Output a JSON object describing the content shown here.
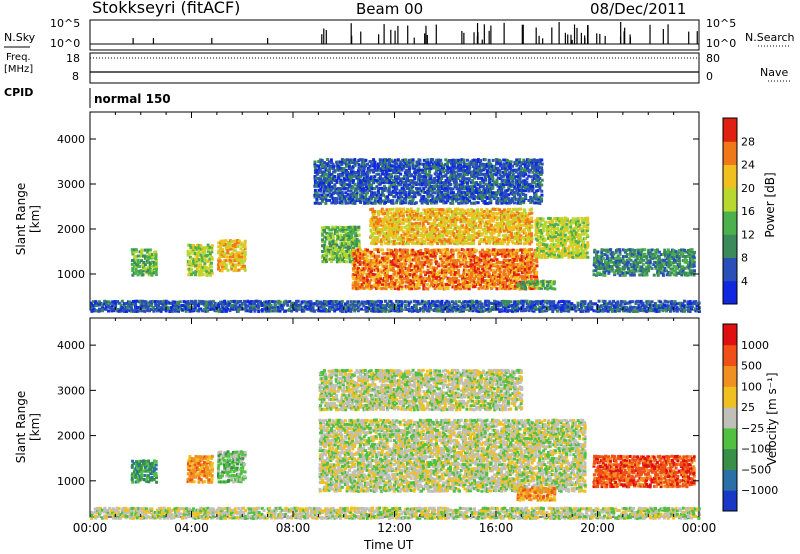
{
  "header": {
    "title": "Stokkseyri (fitACF)",
    "beam": "Beam 00",
    "date": "08/Dec/2011"
  },
  "top_panels": {
    "nsky_label": "N.Sky",
    "nsearch_label": "N.Search",
    "freq_label": "Freq.",
    "freq_unit": "[MHz]",
    "nave_label": "Nave",
    "cpid_label": "CPID",
    "cpid_value": "normal 150",
    "count_ticks_left": [
      "10^5",
      "10^0"
    ],
    "count_ticks_right": [
      "10^5",
      "10^0"
    ],
    "freq_ticks": [
      "18",
      "8"
    ],
    "nave_ticks": [
      "80",
      "0"
    ]
  },
  "chart_data": [
    {
      "type": "heatmap",
      "panel": "power",
      "ylabel": "Slant Range [km]",
      "ylim": [
        200,
        4600
      ],
      "yticks": [
        1000,
        2000,
        3000,
        4000
      ],
      "xlabel": "Time UT",
      "xlim_hours": [
        0,
        24
      ],
      "colorbar_label": "Power [dB]",
      "colorbar_ticks": [
        "28",
        "24",
        "20",
        "16",
        "12",
        "8",
        "4"
      ],
      "colors": [
        "#1028e0",
        "#2a4fb8",
        "#3a8a5a",
        "#4cb04c",
        "#b8d830",
        "#f0c020",
        "#f07818",
        "#e02010"
      ],
      "regions": [
        {
          "t0": 1.6,
          "t1": 2.6,
          "r0": 1000,
          "r1": 1600,
          "level": 3
        },
        {
          "t0": 3.8,
          "t1": 4.8,
          "r0": 1000,
          "r1": 1700,
          "level": 4
        },
        {
          "t0": 5.0,
          "t1": 6.1,
          "r0": 1100,
          "r1": 1800,
          "level": 5
        },
        {
          "t0": 9.1,
          "t1": 10.6,
          "r0": 1300,
          "r1": 2100,
          "level": 3
        },
        {
          "t0": 10.3,
          "t1": 17.6,
          "r0": 700,
          "r1": 1600,
          "level": 6
        },
        {
          "t0": 11.0,
          "t1": 17.4,
          "r0": 1700,
          "r1": 2500,
          "level": 5
        },
        {
          "t0": 17.5,
          "t1": 19.6,
          "r0": 1400,
          "r1": 2300,
          "level": 4
        },
        {
          "t0": 16.8,
          "t1": 18.3,
          "r0": 700,
          "r1": 900,
          "level": 3
        },
        {
          "t0": 19.8,
          "t1": 23.8,
          "r0": 1000,
          "r1": 1600,
          "level": 2
        },
        {
          "t0": 0.0,
          "t1": 24.0,
          "r0": 200,
          "r1": 450,
          "level": 1
        },
        {
          "t0": 8.8,
          "t1": 17.8,
          "r0": 2600,
          "r1": 3600,
          "level": 1
        }
      ]
    },
    {
      "type": "heatmap",
      "panel": "velocity",
      "ylabel": "Slant Range [km]",
      "ylim": [
        200,
        4600
      ],
      "yticks": [
        1000,
        2000,
        3000,
        4000
      ],
      "xlabel": "Time UT",
      "xlim_hours": [
        0,
        24
      ],
      "xtick_labels": [
        "00:00",
        "04:00",
        "08:00",
        "12:00",
        "16:00",
        "20:00",
        "00:00"
      ],
      "colorbar_label": "Velocity [m s⁻¹]",
      "colorbar_ticks": [
        "1000",
        "500",
        "100",
        "25",
        "−25",
        "−100",
        "−500",
        "−1000"
      ],
      "colors": [
        "#1838c8",
        "#2a70a8",
        "#389048",
        "#50c040",
        "#c0c0b8",
        "#f0c020",
        "#f09020",
        "#f05018",
        "#e01010"
      ],
      "regions": [
        {
          "t0": 1.6,
          "t1": 2.6,
          "r0": 1000,
          "r1": 1500,
          "level": 2
        },
        {
          "t0": 3.8,
          "t1": 4.8,
          "r0": 1000,
          "r1": 1600,
          "level": 6
        },
        {
          "t0": 5.0,
          "t1": 6.1,
          "r0": 1000,
          "r1": 1700,
          "level": 3
        },
        {
          "t0": 9.0,
          "t1": 19.5,
          "r0": 800,
          "r1": 2400,
          "level": 4
        },
        {
          "t0": 16.8,
          "t1": 18.3,
          "r0": 600,
          "r1": 900,
          "level": 6
        },
        {
          "t0": 19.8,
          "t1": 23.8,
          "r0": 900,
          "r1": 1600,
          "level": 7
        },
        {
          "t0": 0.0,
          "t1": 24.0,
          "r0": 200,
          "r1": 450,
          "level": 4
        },
        {
          "t0": 9.0,
          "t1": 17.0,
          "r0": 2600,
          "r1": 3500,
          "level": 4
        }
      ]
    }
  ],
  "footer": {
    "xlabel": "Time UT",
    "xtick_labels": [
      "00:00",
      "04:00",
      "08:00",
      "12:00",
      "16:00",
      "20:00",
      "00:00"
    ]
  }
}
